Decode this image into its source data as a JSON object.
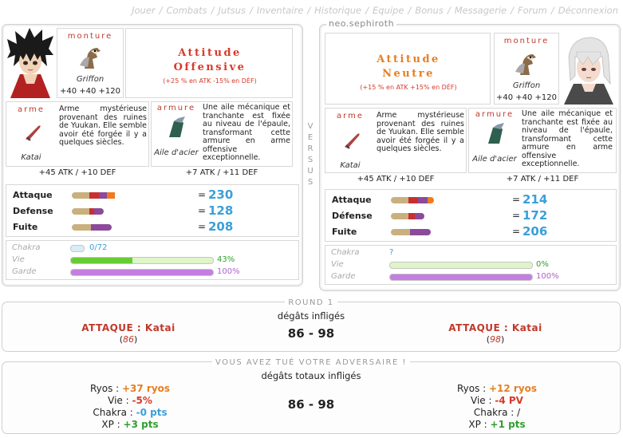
{
  "nav": [
    "Jouer",
    "Combats",
    "Jutsus",
    "Inventaire",
    "Historique",
    "Equipe",
    "Bonus",
    "Messagerie",
    "Forum",
    "Déconnexion"
  ],
  "versus": [
    "V",
    "E",
    "R",
    "S",
    "U",
    "S"
  ],
  "colors": {
    "red": "#c0392b",
    "orange": "#e67e22",
    "blue": "#3aa0d8",
    "green": "#2fa02f"
  },
  "left": {
    "name": "",
    "avatar": "dark-haired-ninja-avatar",
    "monture": {
      "label": "monture",
      "name": "Griffon",
      "bonus": "+40 +40 +120"
    },
    "attitude": {
      "line1": "Attitude",
      "line2": "Offensive",
      "sub": "(+25 % en ATK -15% en DÉF)"
    },
    "arme": {
      "label": "arme",
      "name": "Katai",
      "desc": "Arme mystérieuse provenant des ruines de Yuukan. Elle semble avoir été forgée il y a quelques siècles.",
      "bonus": "+45 ATK / +10 DEF"
    },
    "armure": {
      "label": "armure",
      "name": "Aile d'acier",
      "desc": "Une aile mécanique et tranchante est fixée au niveau de l'épaule, transformant cette armure en arme offensive exceptionnelle.",
      "bonus": "+7 ATK / +11 DEF"
    },
    "stats": [
      {
        "label": "Attaque",
        "value": "230"
      },
      {
        "label": "Defense",
        "value": "128"
      },
      {
        "label": "Fuite",
        "value": "208"
      }
    ],
    "vitals": {
      "chakra": {
        "label": "Chakra",
        "text": "0/72",
        "fraction": 0
      },
      "vie": {
        "label": "Vie",
        "text": "43%",
        "fraction": 0.43
      },
      "garde": {
        "label": "Garde",
        "text": "100%",
        "fraction": 1.0
      }
    }
  },
  "right": {
    "name": "neo.sephiroth",
    "avatar": "white-haired-ninja-avatar",
    "monture": {
      "label": "monture",
      "name": "Griffon",
      "bonus": "+40 +40 +120"
    },
    "attitude": {
      "line1": "Attitude",
      "line2": "Neutre",
      "sub": "(+15 % en ATK +15% en DÉF)"
    },
    "arme": {
      "label": "arme",
      "name": "Katai",
      "desc": "Arme mystérieuse provenant des ruines de Yuukan. Elle semble avoir été forgée il y a quelques siècles.",
      "bonus": "+45 ATK / +10 DEF"
    },
    "armure": {
      "label": "armure",
      "name": "Aile d'acier",
      "desc": "Une aile mécanique et tranchante est fixée au niveau de l'épaule, transformant cette armure en arme offensive exceptionnelle.",
      "bonus": "+7 ATK / +11 DEF"
    },
    "stats": [
      {
        "label": "Attaque",
        "value": "214"
      },
      {
        "label": "Défense",
        "value": "172"
      },
      {
        "label": "Fuite",
        "value": "206"
      }
    ],
    "vitals": {
      "chakra": {
        "label": "Chakra",
        "text": "?",
        "fraction": 0
      },
      "vie": {
        "label": "Vie",
        "text": "0%",
        "fraction": 0
      },
      "garde": {
        "label": "Garde",
        "text": "100%",
        "fraction": 1.0
      }
    }
  },
  "round": {
    "title": "Round 1",
    "subtitle": "dégâts infligés",
    "score": "86 - 98",
    "left_attack": "ATTAQUE : Katai",
    "left_dmg": "86",
    "right_attack": "ATTAQUE : Katai",
    "right_dmg": "98"
  },
  "result": {
    "title": "Vous avez tué votre adversaire !",
    "subtitle": "dégâts totaux infligés",
    "score": "86 - 98",
    "left": [
      {
        "label": "Ryos",
        "value": "+37 ryos",
        "color": "orange"
      },
      {
        "label": "Vie",
        "value": "-5%",
        "color": "red"
      },
      {
        "label": "Chakra",
        "value": "-0 pts",
        "color": "blue"
      },
      {
        "label": "XP",
        "value": "+3 pts",
        "color": "green"
      }
    ],
    "right": [
      {
        "label": "Ryos",
        "value": "+12 ryos",
        "color": "orange"
      },
      {
        "label": "Vie",
        "value": "-4 PV",
        "color": "red"
      },
      {
        "label": "Chakra",
        "value": "/",
        "color": "none"
      },
      {
        "label": "XP",
        "value": "+1 pts",
        "color": "green"
      }
    ]
  }
}
